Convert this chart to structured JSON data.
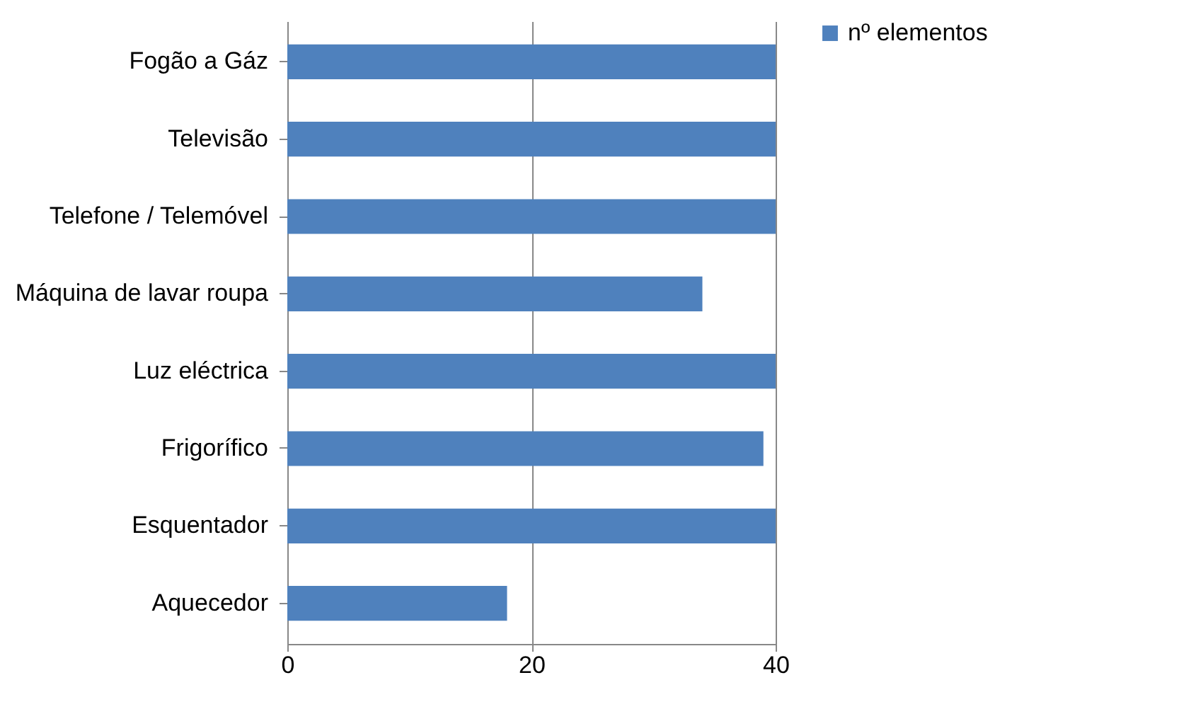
{
  "chart_data": {
    "type": "bar",
    "orientation": "horizontal",
    "categories": [
      "Fogão a Gáz",
      "Televisão",
      "Telefone / Telemóvel",
      "Máquina de lavar roupa",
      "Luz eléctrica",
      "Frigorífico",
      "Esquentador",
      "Aquecedor"
    ],
    "series": [
      {
        "name": "nº elementos",
        "color": "#4f81bd",
        "values": [
          40,
          40,
          40,
          34,
          40,
          39,
          40,
          18
        ]
      }
    ],
    "xlim": [
      0,
      40
    ],
    "xticks": [
      0,
      20,
      40
    ],
    "grid": "x",
    "legend": "right"
  }
}
